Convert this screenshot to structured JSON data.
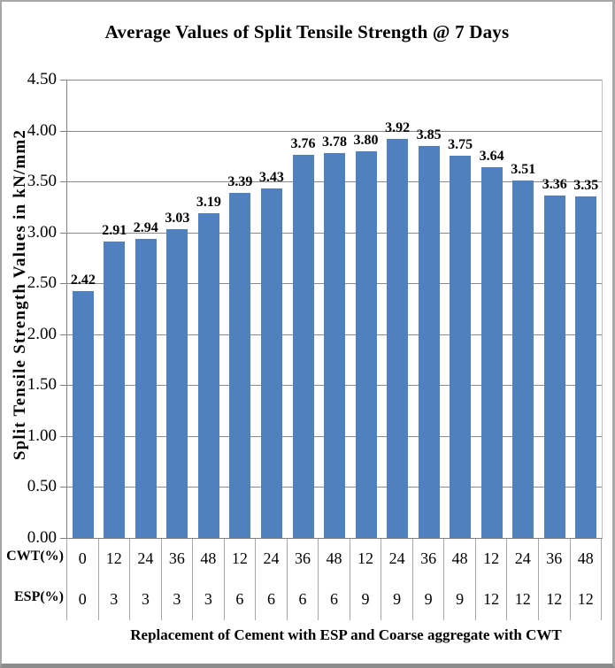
{
  "chart_data": {
    "type": "bar",
    "title": "Average Values of Split Tensile Strength @ 7 Days",
    "ylabel": "Split Tensile Strength Values in kN/mm2",
    "xlabel": "Replacement of Cement with ESP and Coarse aggregate with CWT",
    "ylim": [
      0,
      4.5
    ],
    "ytick_step": 0.5,
    "ytick_labels": [
      "0.00",
      "0.50",
      "1.00",
      "1.50",
      "2.00",
      "2.50",
      "3.00",
      "3.50",
      "4.00",
      "4.50"
    ],
    "grid": true,
    "legend": "none",
    "bar_color": "#4E81BD",
    "gridline_color": "#898989",
    "axis_color": "#808080",
    "table_line_color": "#a6a6a6",
    "values": [
      2.42,
      2.91,
      2.94,
      3.03,
      3.19,
      3.39,
      3.43,
      3.76,
      3.78,
      3.8,
      3.92,
      3.85,
      3.75,
      3.64,
      3.51,
      3.36,
      3.35
    ],
    "value_labels": [
      "2.42",
      "2.91",
      "2.94",
      "3.03",
      "3.19",
      "3.39",
      "3.43",
      "3.76",
      "3.78",
      "3.80",
      "3.92",
      "3.85",
      "3.75",
      "3.64",
      "3.51",
      "3.36",
      "3.35"
    ],
    "x_table": {
      "rows": [
        {
          "header": "CWT(%)",
          "cells": [
            "0",
            "12",
            "24",
            "36",
            "48",
            "12",
            "24",
            "36",
            "48",
            "12",
            "24",
            "36",
            "48",
            "12",
            "24",
            "36",
            "48"
          ]
        },
        {
          "header": "ESP(%)",
          "cells": [
            "0",
            "3",
            "3",
            "3",
            "3",
            "6",
            "6",
            "6",
            "6",
            "9",
            "9",
            "9",
            "9",
            "12",
            "12",
            "12",
            "12"
          ]
        }
      ]
    }
  }
}
